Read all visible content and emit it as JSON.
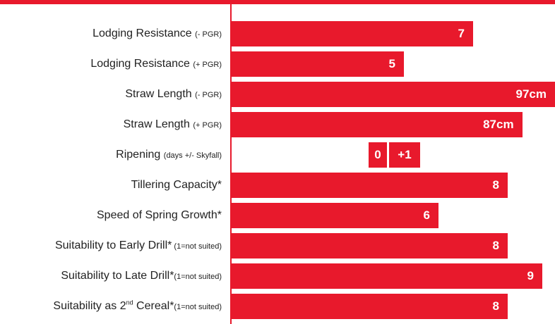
{
  "colors": {
    "bar": "#e8192c",
    "axis": "#e8192c",
    "text": "#222222"
  },
  "chart_data": {
    "type": "bar",
    "orientation": "horizontal",
    "categories": [
      {
        "main": "Lodging Resistance ",
        "suffix": "(- PGR)"
      },
      {
        "main": "Lodging Resistance ",
        "suffix": "(+ PGR)"
      },
      {
        "main": "Straw Length ",
        "suffix": "(- PGR)"
      },
      {
        "main": "Straw Length ",
        "suffix": "(+ PGR)"
      },
      {
        "main": "Ripening ",
        "suffix": "(days +/- Skyfall)"
      },
      {
        "main": "Tillering Capacity*",
        "suffix": ""
      },
      {
        "main": "Speed of Spring Growth*",
        "suffix": ""
      },
      {
        "main": "Suitability to Early Drill*",
        "suffix": " (1=not suited)"
      },
      {
        "main": "Suitability to Late Drill*",
        "suffix": "(1=not suited)"
      },
      {
        "main": "Suitability as 2",
        "sup": "nd",
        "main2": " Cereal*",
        "suffix": "(1=not suited)"
      }
    ],
    "series": [
      {
        "bars": [
          {
            "value": 7,
            "label": "7",
            "scale": "score_1_9"
          },
          {
            "value": 5,
            "label": "5",
            "scale": "score_1_9"
          },
          {
            "value": 97,
            "label": "97cm",
            "scale": "cm"
          },
          {
            "value": 87,
            "label": "87cm",
            "scale": "cm"
          },
          {
            "value": 1,
            "label": "+1",
            "scale": "days",
            "baseline_label": "0"
          },
          {
            "value": 8,
            "label": "8",
            "scale": "score_1_9"
          },
          {
            "value": 6,
            "label": "6",
            "scale": "score_1_9"
          },
          {
            "value": 8,
            "label": "8",
            "scale": "score_1_9"
          },
          {
            "value": 9,
            "label": "9",
            "scale": "score_1_9"
          },
          {
            "value": 8,
            "label": "8",
            "scale": "score_1_9"
          }
        ]
      }
    ],
    "xlim_score": [
      0,
      9
    ],
    "xlim_cm": [
      0,
      97
    ],
    "grid": false,
    "legend": "none"
  }
}
